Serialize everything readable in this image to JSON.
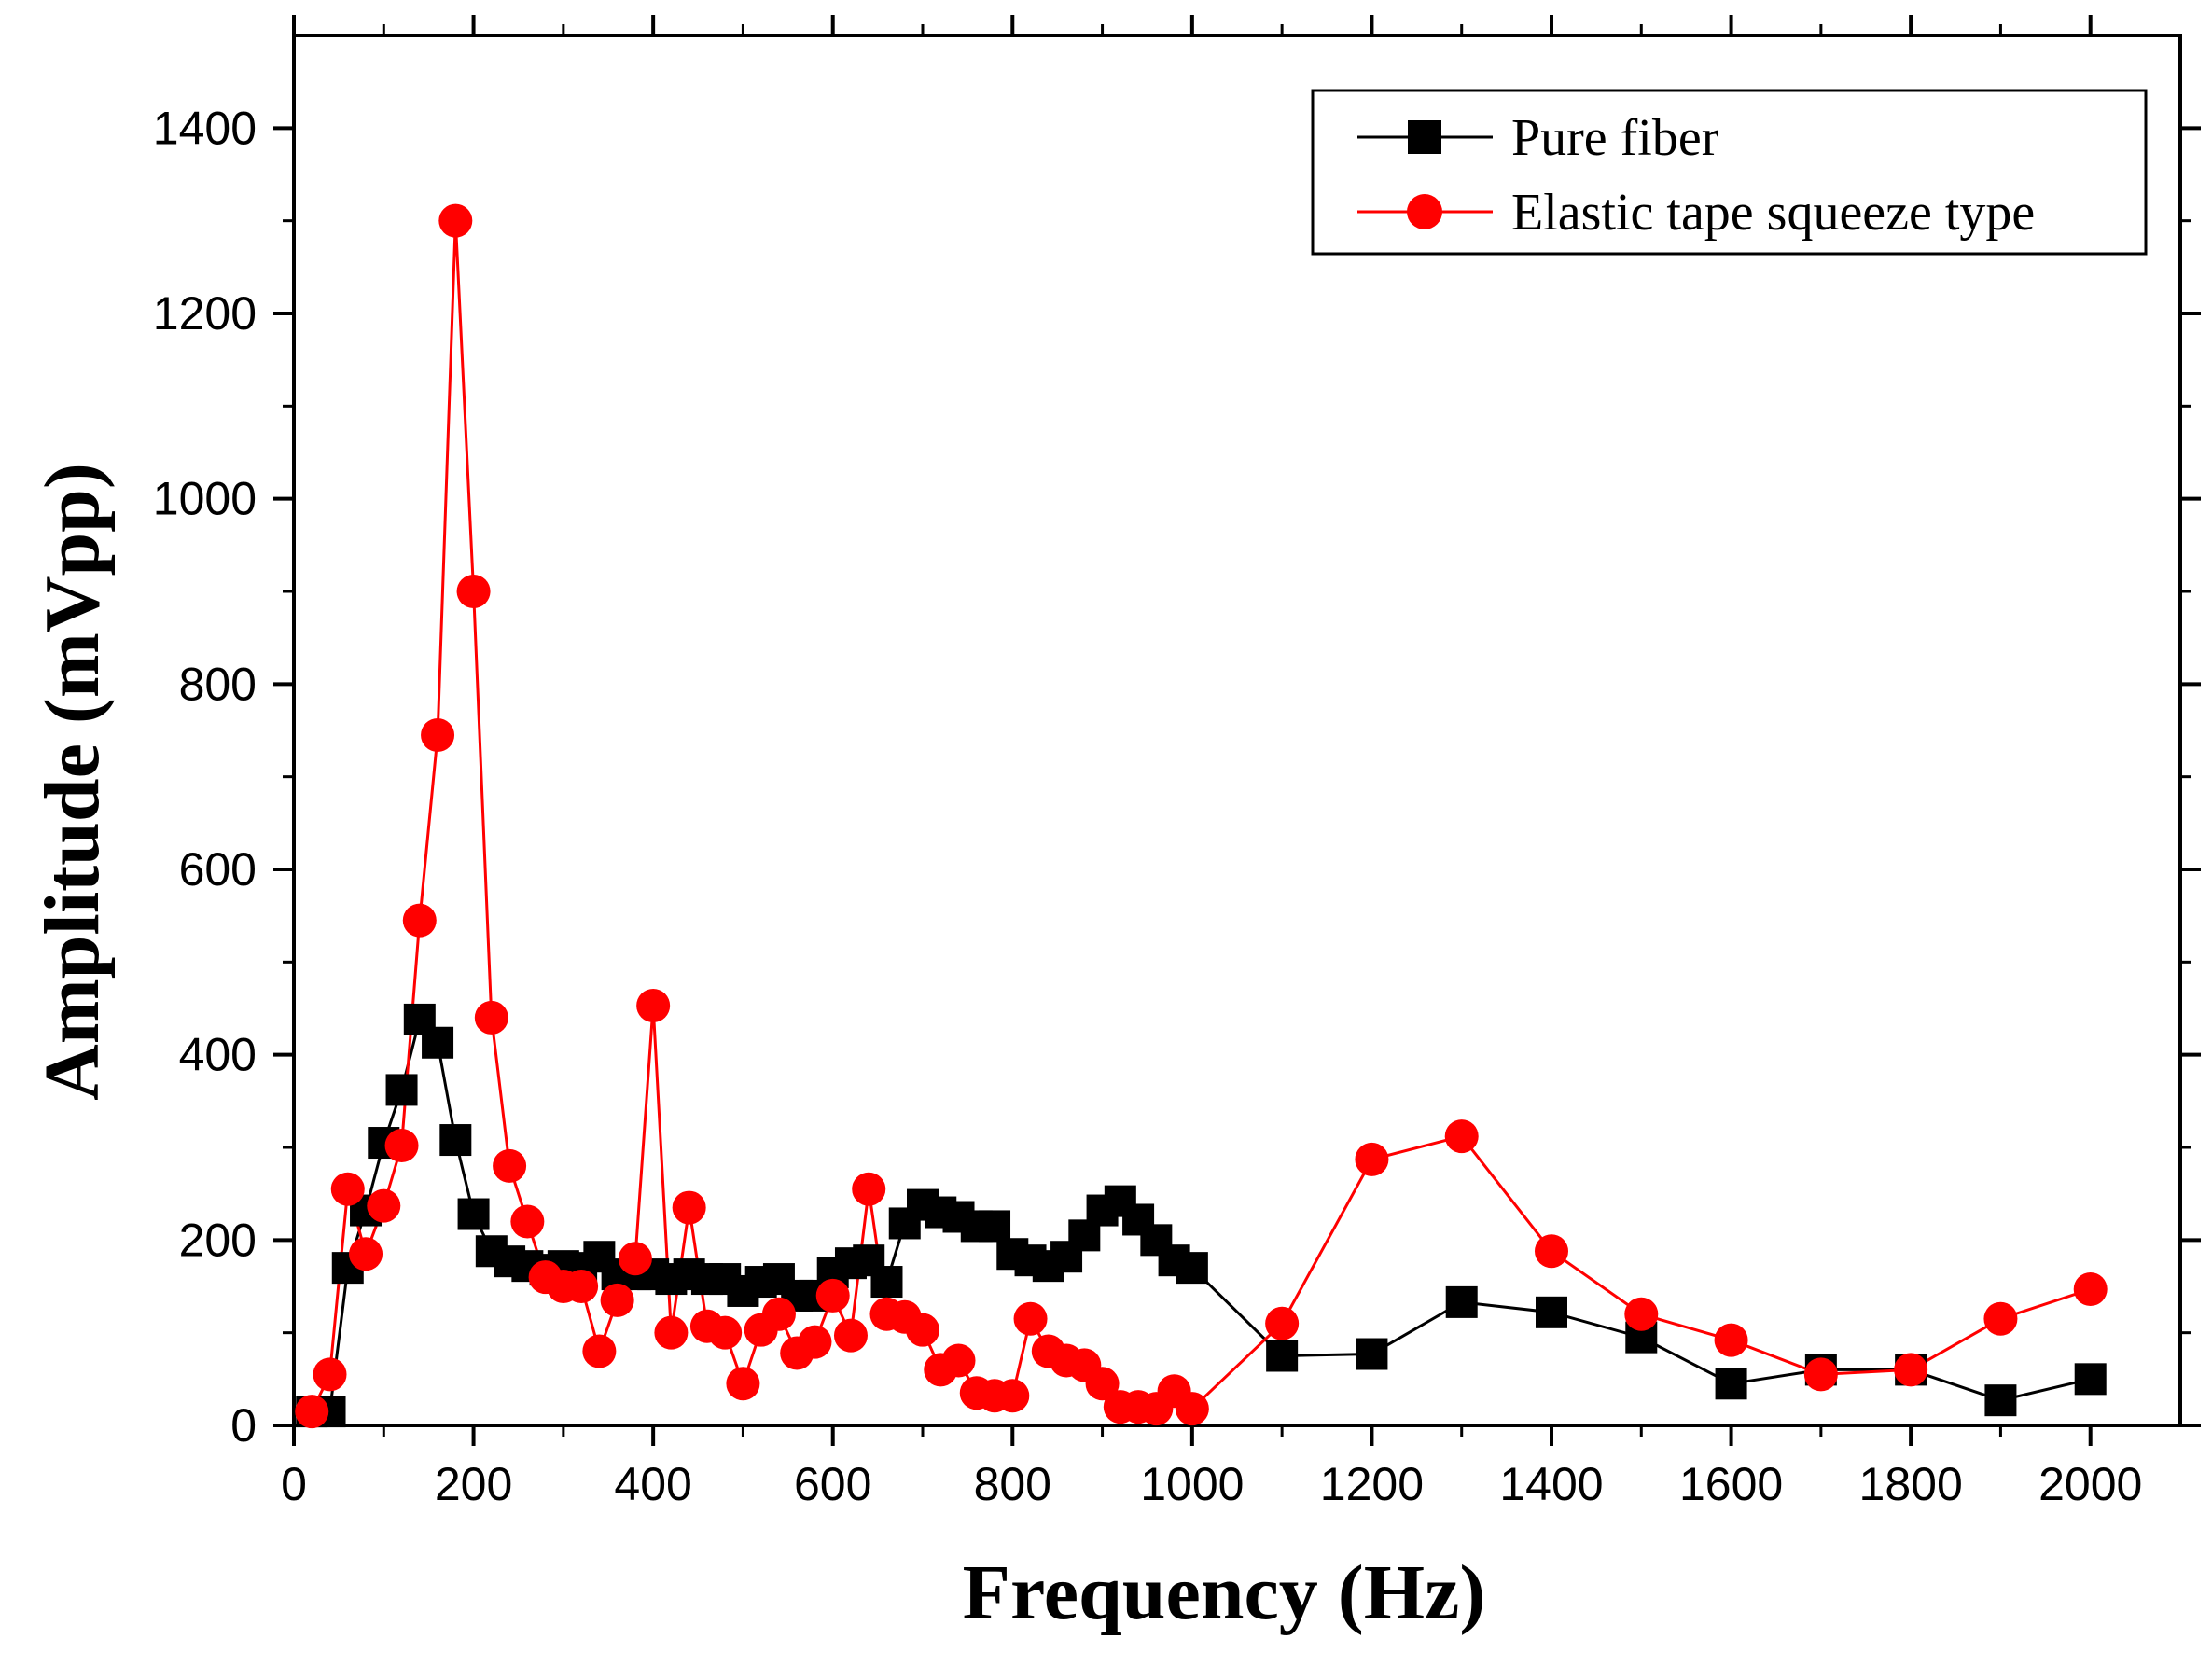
{
  "chart_data": {
    "type": "line",
    "title": "",
    "xlabel": "Frequency (Hz)",
    "ylabel": "Amplitude (mVpp)",
    "xlim": [
      0,
      2100
    ],
    "ylim": [
      0,
      1500
    ],
    "x_ticks": [
      0,
      200,
      400,
      600,
      800,
      1000,
      1200,
      1400,
      1600,
      1800,
      2000
    ],
    "y_ticks": [
      0,
      200,
      400,
      600,
      800,
      1000,
      1200,
      1400
    ],
    "grid": false,
    "legend_position": "top-right",
    "series": [
      {
        "name": "Pure fiber",
        "color": "#000000",
        "marker": "square",
        "x": [
          20,
          40,
          60,
          80,
          100,
          120,
          140,
          160,
          180,
          200,
          220,
          240,
          260,
          280,
          300,
          320,
          340,
          360,
          380,
          400,
          420,
          440,
          460,
          480,
          500,
          520,
          540,
          560,
          580,
          600,
          620,
          640,
          660,
          680,
          700,
          720,
          740,
          760,
          780,
          800,
          820,
          840,
          860,
          880,
          900,
          920,
          940,
          960,
          980,
          1000,
          1100,
          1200,
          1300,
          1400,
          1500,
          1600,
          1700,
          1800,
          1900,
          2000
        ],
        "y": [
          15,
          15,
          170,
          232,
          305,
          362,
          438,
          413,
          308,
          228,
          188,
          177,
          172,
          168,
          172,
          170,
          182,
          163,
          163,
          163,
          158,
          163,
          158,
          158,
          145,
          155,
          158,
          140,
          140,
          165,
          175,
          178,
          155,
          218,
          238,
          230,
          225,
          215,
          215,
          185,
          178,
          172,
          182,
          205,
          232,
          242,
          222,
          200,
          178,
          170,
          75,
          77,
          133,
          122,
          95,
          45,
          60,
          60,
          27,
          50
        ]
      },
      {
        "name": "Elastic tape squeeze type",
        "color": "#ff0000",
        "marker": "circle",
        "x": [
          20,
          40,
          60,
          80,
          100,
          120,
          140,
          160,
          180,
          200,
          220,
          240,
          260,
          280,
          300,
          320,
          340,
          360,
          380,
          400,
          420,
          440,
          460,
          480,
          500,
          520,
          540,
          560,
          580,
          600,
          620,
          640,
          660,
          680,
          700,
          720,
          740,
          760,
          780,
          800,
          820,
          840,
          860,
          880,
          900,
          920,
          940,
          960,
          980,
          1000,
          1100,
          1200,
          1300,
          1400,
          1500,
          1600,
          1700,
          1800,
          1900,
          2000
        ],
        "y": [
          15,
          55,
          255,
          185,
          237,
          302,
          545,
          745,
          1300,
          900,
          440,
          280,
          220,
          160,
          150,
          150,
          80,
          135,
          180,
          453,
          100,
          235,
          107,
          100,
          45,
          103,
          120,
          78,
          90,
          140,
          97,
          255,
          120,
          117,
          103,
          60,
          70,
          35,
          32,
          32,
          115,
          80,
          70,
          65,
          45,
          20,
          20,
          18,
          37,
          18,
          110,
          287,
          312,
          188,
          120,
          92,
          55,
          60,
          115,
          147
        ]
      }
    ]
  }
}
